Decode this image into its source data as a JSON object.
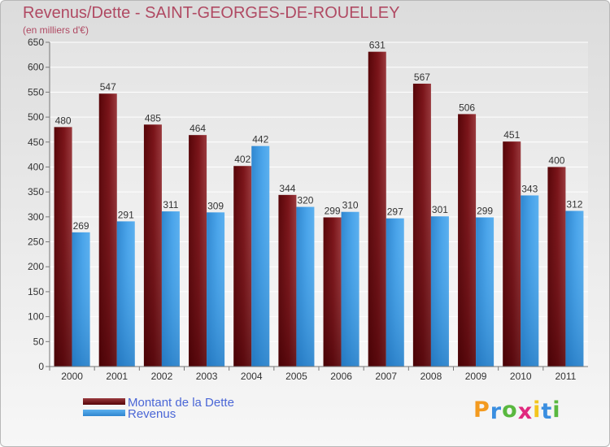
{
  "title": "Revenus/Dette - SAINT-GEORGES-DE-ROUELLEY",
  "subtitle": "(en milliers d'€)",
  "legend": [
    {
      "label": "Montant de la Dette",
      "color": "#7a0f16"
    },
    {
      "label": "Revenus",
      "color": "#3b9be3"
    }
  ],
  "logo": {
    "letters": [
      "P",
      "r",
      "o",
      "x",
      "i",
      "t",
      "i"
    ],
    "colors": [
      "#f39a1f",
      "#3a8ee0",
      "#59b83f",
      "#e0287e",
      "#f3c51f",
      "#3a8ee0",
      "#59b83f"
    ]
  },
  "chart_data": {
    "type": "bar",
    "categories": [
      "2000",
      "2001",
      "2002",
      "2003",
      "2004",
      "2005",
      "2006",
      "2007",
      "2008",
      "2009",
      "2010",
      "2011"
    ],
    "series": [
      {
        "name": "Montant de la Dette",
        "values": [
          480,
          547,
          485,
          464,
          402,
          344,
          299,
          631,
          567,
          506,
          451,
          400
        ],
        "color": "#7a0f16"
      },
      {
        "name": "Revenus",
        "values": [
          269,
          291,
          311,
          309,
          442,
          320,
          310,
          297,
          301,
          299,
          343,
          312
        ],
        "color": "#3b9be3"
      }
    ],
    "ylim": [
      0,
      650
    ],
    "yticks": [
      0,
      50,
      100,
      150,
      200,
      250,
      300,
      350,
      400,
      450,
      500,
      550,
      600,
      650
    ],
    "grid": true,
    "legend_position": "bottom"
  }
}
